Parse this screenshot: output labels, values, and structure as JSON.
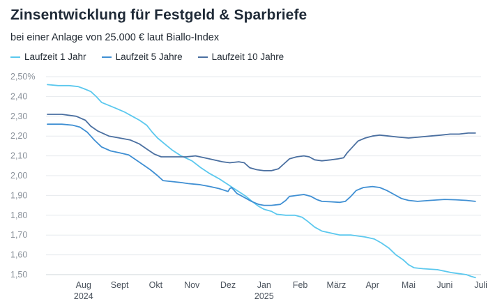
{
  "chart_data": {
    "type": "line",
    "title": "Zinsentwicklung für Festgeld & Sparbriefe",
    "subtitle": "bei einer Anlage von 25.000 € laut Biallo-Index",
    "ylim": [
      1.5,
      2.5
    ],
    "yticks": [
      "2,50%",
      "2,40",
      "2,30",
      "2,20",
      "2,10",
      "2,00",
      "1,90",
      "1,80",
      "1,70",
      "1,60",
      "1,50"
    ],
    "xticks": [
      {
        "label": "Aug",
        "sub": "2024",
        "t": 1
      },
      {
        "label": "Sept",
        "sub": "",
        "t": 2
      },
      {
        "label": "Okt",
        "sub": "",
        "t": 3
      },
      {
        "label": "Nov",
        "sub": "",
        "t": 4
      },
      {
        "label": "Dez",
        "sub": "",
        "t": 5
      },
      {
        "label": "Jan",
        "sub": "2025",
        "t": 6
      },
      {
        "label": "Feb",
        "sub": "",
        "t": 7
      },
      {
        "label": "März",
        "sub": "",
        "t": 8
      },
      {
        "label": "Apr",
        "sub": "",
        "t": 9
      },
      {
        "label": "Mai",
        "sub": "",
        "t": 10
      },
      {
        "label": "Juni",
        "sub": "",
        "t": 11
      },
      {
        "label": "Juli",
        "sub": "",
        "t": 12
      }
    ],
    "grid": true,
    "legend_position": "top-left",
    "series": [
      {
        "name": "Laufzeit 1 Jahr",
        "color": "#5bc8ee",
        "points": [
          [
            0.0,
            2.46
          ],
          [
            0.3,
            2.455
          ],
          [
            0.6,
            2.455
          ],
          [
            0.85,
            2.45
          ],
          [
            1.0,
            2.44
          ],
          [
            1.2,
            2.425
          ],
          [
            1.35,
            2.4
          ],
          [
            1.5,
            2.37
          ],
          [
            1.7,
            2.355
          ],
          [
            1.9,
            2.34
          ],
          [
            2.15,
            2.32
          ],
          [
            2.35,
            2.3
          ],
          [
            2.55,
            2.28
          ],
          [
            2.75,
            2.255
          ],
          [
            2.9,
            2.22
          ],
          [
            3.05,
            2.19
          ],
          [
            3.25,
            2.16
          ],
          [
            3.45,
            2.13
          ],
          [
            3.7,
            2.1
          ],
          [
            4.0,
            2.075
          ],
          [
            4.25,
            2.04
          ],
          [
            4.5,
            2.01
          ],
          [
            4.75,
            1.985
          ],
          [
            5.0,
            1.955
          ],
          [
            5.25,
            1.925
          ],
          [
            5.5,
            1.895
          ],
          [
            5.7,
            1.865
          ],
          [
            5.85,
            1.845
          ],
          [
            6.0,
            1.83
          ],
          [
            6.2,
            1.82
          ],
          [
            6.35,
            1.805
          ],
          [
            6.6,
            1.8
          ],
          [
            6.85,
            1.8
          ],
          [
            7.05,
            1.79
          ],
          [
            7.2,
            1.77
          ],
          [
            7.4,
            1.74
          ],
          [
            7.6,
            1.72
          ],
          [
            7.85,
            1.71
          ],
          [
            8.1,
            1.7
          ],
          [
            8.4,
            1.7
          ],
          [
            8.8,
            1.69
          ],
          [
            9.05,
            1.68
          ],
          [
            9.25,
            1.66
          ],
          [
            9.45,
            1.635
          ],
          [
            9.65,
            1.6
          ],
          [
            9.85,
            1.575
          ],
          [
            10.0,
            1.55
          ],
          [
            10.15,
            1.535
          ],
          [
            10.4,
            1.53
          ],
          [
            10.8,
            1.525
          ],
          [
            11.2,
            1.51
          ],
          [
            11.6,
            1.5
          ],
          [
            11.75,
            1.49
          ],
          [
            11.85,
            1.485
          ]
        ]
      },
      {
        "name": "Laufzeit 5 Jahre",
        "color": "#3f8fd3",
        "points": [
          [
            0.0,
            2.26
          ],
          [
            0.4,
            2.26
          ],
          [
            0.7,
            2.255
          ],
          [
            0.9,
            2.245
          ],
          [
            1.1,
            2.22
          ],
          [
            1.3,
            2.18
          ],
          [
            1.5,
            2.145
          ],
          [
            1.75,
            2.125
          ],
          [
            2.0,
            2.115
          ],
          [
            2.25,
            2.105
          ],
          [
            2.45,
            2.08
          ],
          [
            2.65,
            2.055
          ],
          [
            2.85,
            2.03
          ],
          [
            3.05,
            2.0
          ],
          [
            3.2,
            1.975
          ],
          [
            3.45,
            1.97
          ],
          [
            3.7,
            1.965
          ],
          [
            3.9,
            1.96
          ],
          [
            4.2,
            1.955
          ],
          [
            4.5,
            1.945
          ],
          [
            4.75,
            1.935
          ],
          [
            5.0,
            1.92
          ],
          [
            5.05,
            1.935
          ],
          [
            5.1,
            1.94
          ],
          [
            5.25,
            1.91
          ],
          [
            5.45,
            1.89
          ],
          [
            5.65,
            1.87
          ],
          [
            5.85,
            1.855
          ],
          [
            6.0,
            1.85
          ],
          [
            6.2,
            1.85
          ],
          [
            6.45,
            1.855
          ],
          [
            6.6,
            1.875
          ],
          [
            6.7,
            1.895
          ],
          [
            6.9,
            1.9
          ],
          [
            7.1,
            1.905
          ],
          [
            7.3,
            1.895
          ],
          [
            7.45,
            1.88
          ],
          [
            7.6,
            1.87
          ],
          [
            7.85,
            1.868
          ],
          [
            8.1,
            1.865
          ],
          [
            8.25,
            1.87
          ],
          [
            8.4,
            1.895
          ],
          [
            8.55,
            1.925
          ],
          [
            8.75,
            1.94
          ],
          [
            9.0,
            1.945
          ],
          [
            9.2,
            1.94
          ],
          [
            9.4,
            1.925
          ],
          [
            9.6,
            1.905
          ],
          [
            9.8,
            1.885
          ],
          [
            10.0,
            1.875
          ],
          [
            10.25,
            1.87
          ],
          [
            10.6,
            1.875
          ],
          [
            11.0,
            1.88
          ],
          [
            11.3,
            1.878
          ],
          [
            11.6,
            1.875
          ],
          [
            11.85,
            1.87
          ]
        ]
      },
      {
        "name": "Laufzeit 10 Jahre",
        "color": "#4a6fa0",
        "points": [
          [
            0.0,
            2.31
          ],
          [
            0.4,
            2.31
          ],
          [
            0.8,
            2.3
          ],
          [
            1.05,
            2.28
          ],
          [
            1.2,
            2.25
          ],
          [
            1.4,
            2.225
          ],
          [
            1.7,
            2.2
          ],
          [
            2.0,
            2.19
          ],
          [
            2.3,
            2.18
          ],
          [
            2.55,
            2.16
          ],
          [
            2.75,
            2.135
          ],
          [
            2.95,
            2.11
          ],
          [
            3.15,
            2.095
          ],
          [
            3.5,
            2.095
          ],
          [
            3.85,
            2.095
          ],
          [
            4.1,
            2.1
          ],
          [
            4.35,
            2.09
          ],
          [
            4.6,
            2.08
          ],
          [
            4.85,
            2.07
          ],
          [
            5.05,
            2.065
          ],
          [
            5.3,
            2.07
          ],
          [
            5.45,
            2.065
          ],
          [
            5.6,
            2.04
          ],
          [
            5.8,
            2.03
          ],
          [
            6.0,
            2.025
          ],
          [
            6.2,
            2.025
          ],
          [
            6.4,
            2.035
          ],
          [
            6.55,
            2.06
          ],
          [
            6.7,
            2.085
          ],
          [
            6.9,
            2.095
          ],
          [
            7.1,
            2.1
          ],
          [
            7.25,
            2.095
          ],
          [
            7.4,
            2.08
          ],
          [
            7.6,
            2.075
          ],
          [
            7.85,
            2.08
          ],
          [
            8.05,
            2.085
          ],
          [
            8.2,
            2.09
          ],
          [
            8.3,
            2.115
          ],
          [
            8.45,
            2.145
          ],
          [
            8.6,
            2.175
          ],
          [
            8.8,
            2.19
          ],
          [
            9.0,
            2.2
          ],
          [
            9.2,
            2.205
          ],
          [
            9.45,
            2.2
          ],
          [
            9.7,
            2.195
          ],
          [
            10.0,
            2.19
          ],
          [
            10.3,
            2.195
          ],
          [
            10.6,
            2.2
          ],
          [
            10.9,
            2.205
          ],
          [
            11.15,
            2.21
          ],
          [
            11.4,
            2.21
          ],
          [
            11.65,
            2.215
          ],
          [
            11.85,
            2.215
          ]
        ]
      }
    ]
  }
}
